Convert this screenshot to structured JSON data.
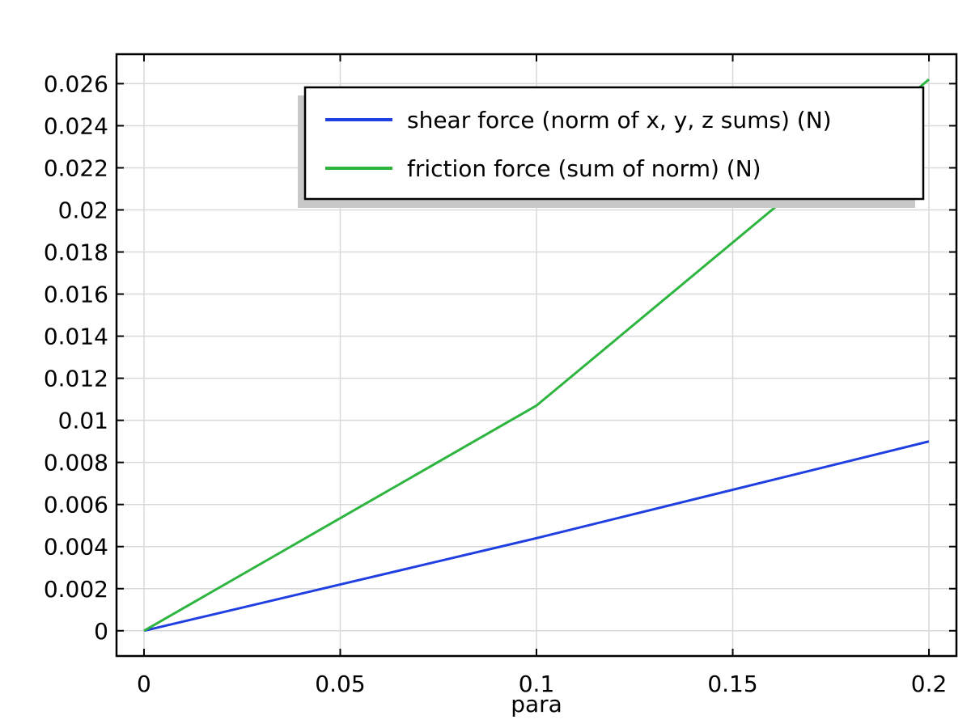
{
  "chart_data": {
    "type": "line",
    "title": "",
    "xlabel": "para",
    "ylabel": "",
    "xlim": [
      -0.007,
      0.207
    ],
    "ylim": [
      -0.0012,
      0.0274
    ],
    "x_ticks": [
      0,
      0.05,
      0.1,
      0.15,
      0.2
    ],
    "x_tick_labels": [
      "0",
      "0.05",
      "0.1",
      "0.15",
      "0.2"
    ],
    "y_ticks": [
      0,
      0.002,
      0.004,
      0.006,
      0.008,
      0.01,
      0.012,
      0.014,
      0.016,
      0.018,
      0.02,
      0.022,
      0.024,
      0.026
    ],
    "y_tick_labels": [
      "0",
      "0.002",
      "0.004",
      "0.006",
      "0.008",
      "0.01",
      "0.012",
      "0.014",
      "0.016",
      "0.018",
      "0.02",
      "0.022",
      "0.024",
      "0.026"
    ],
    "grid": true,
    "legend_position": "top-right",
    "series": [
      {
        "name": "shear force (norm of x, y, z sums) (N)",
        "color": "#1f3fe0",
        "x": [
          0,
          0.1,
          0.2
        ],
        "y": [
          0,
          0.0044,
          0.009
        ]
      },
      {
        "name": "friction force (sum of norm) (N)",
        "color": "#2eb540",
        "x": [
          0,
          0.1,
          0.2
        ],
        "y": [
          0,
          0.0107,
          0.0262
        ]
      }
    ]
  }
}
